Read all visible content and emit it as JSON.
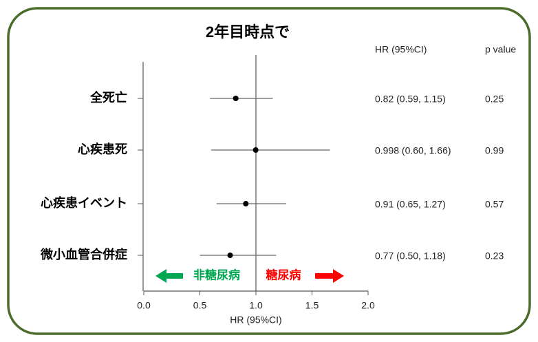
{
  "chart_data": {
    "type": "forest",
    "title": "2年目時点で",
    "categories": [
      "全死亡",
      "心疾患死",
      "心疾患イベント",
      "微小血管合併症"
    ],
    "values": [
      0.82,
      0.998,
      0.91,
      0.77
    ],
    "ci_low": [
      0.59,
      0.6,
      0.65,
      0.5
    ],
    "ci_high": [
      1.15,
      1.66,
      1.27,
      1.18
    ],
    "value_labels": [
      "0.82 (0.59, 1.15)",
      "0.998 (0.60, 1.66)",
      "0.91 (0.65, 1.27)",
      "0.77 (0.50, 1.18)"
    ],
    "p_values": [
      0.25,
      0.99,
      0.57,
      0.23
    ],
    "hr_header": "HR (95%CI)",
    "p_header": "p value",
    "xlabel": "HR (95%CI)",
    "xlim": [
      0,
      2
    ],
    "xticks": [
      {
        "value": 0,
        "label": "0.0"
      },
      0.5,
      {
        "value": 1,
        "label": "1.0"
      },
      1.5,
      {
        "value": 2,
        "label": "2.0"
      }
    ],
    "reference_line": 1,
    "color": "#000000",
    "annotations": [
      {
        "text": "非糖尿病",
        "color": "#00a651",
        "direction": "left"
      },
      {
        "text": "糖尿病",
        "color": "#ff0000",
        "direction": "right"
      }
    ]
  }
}
